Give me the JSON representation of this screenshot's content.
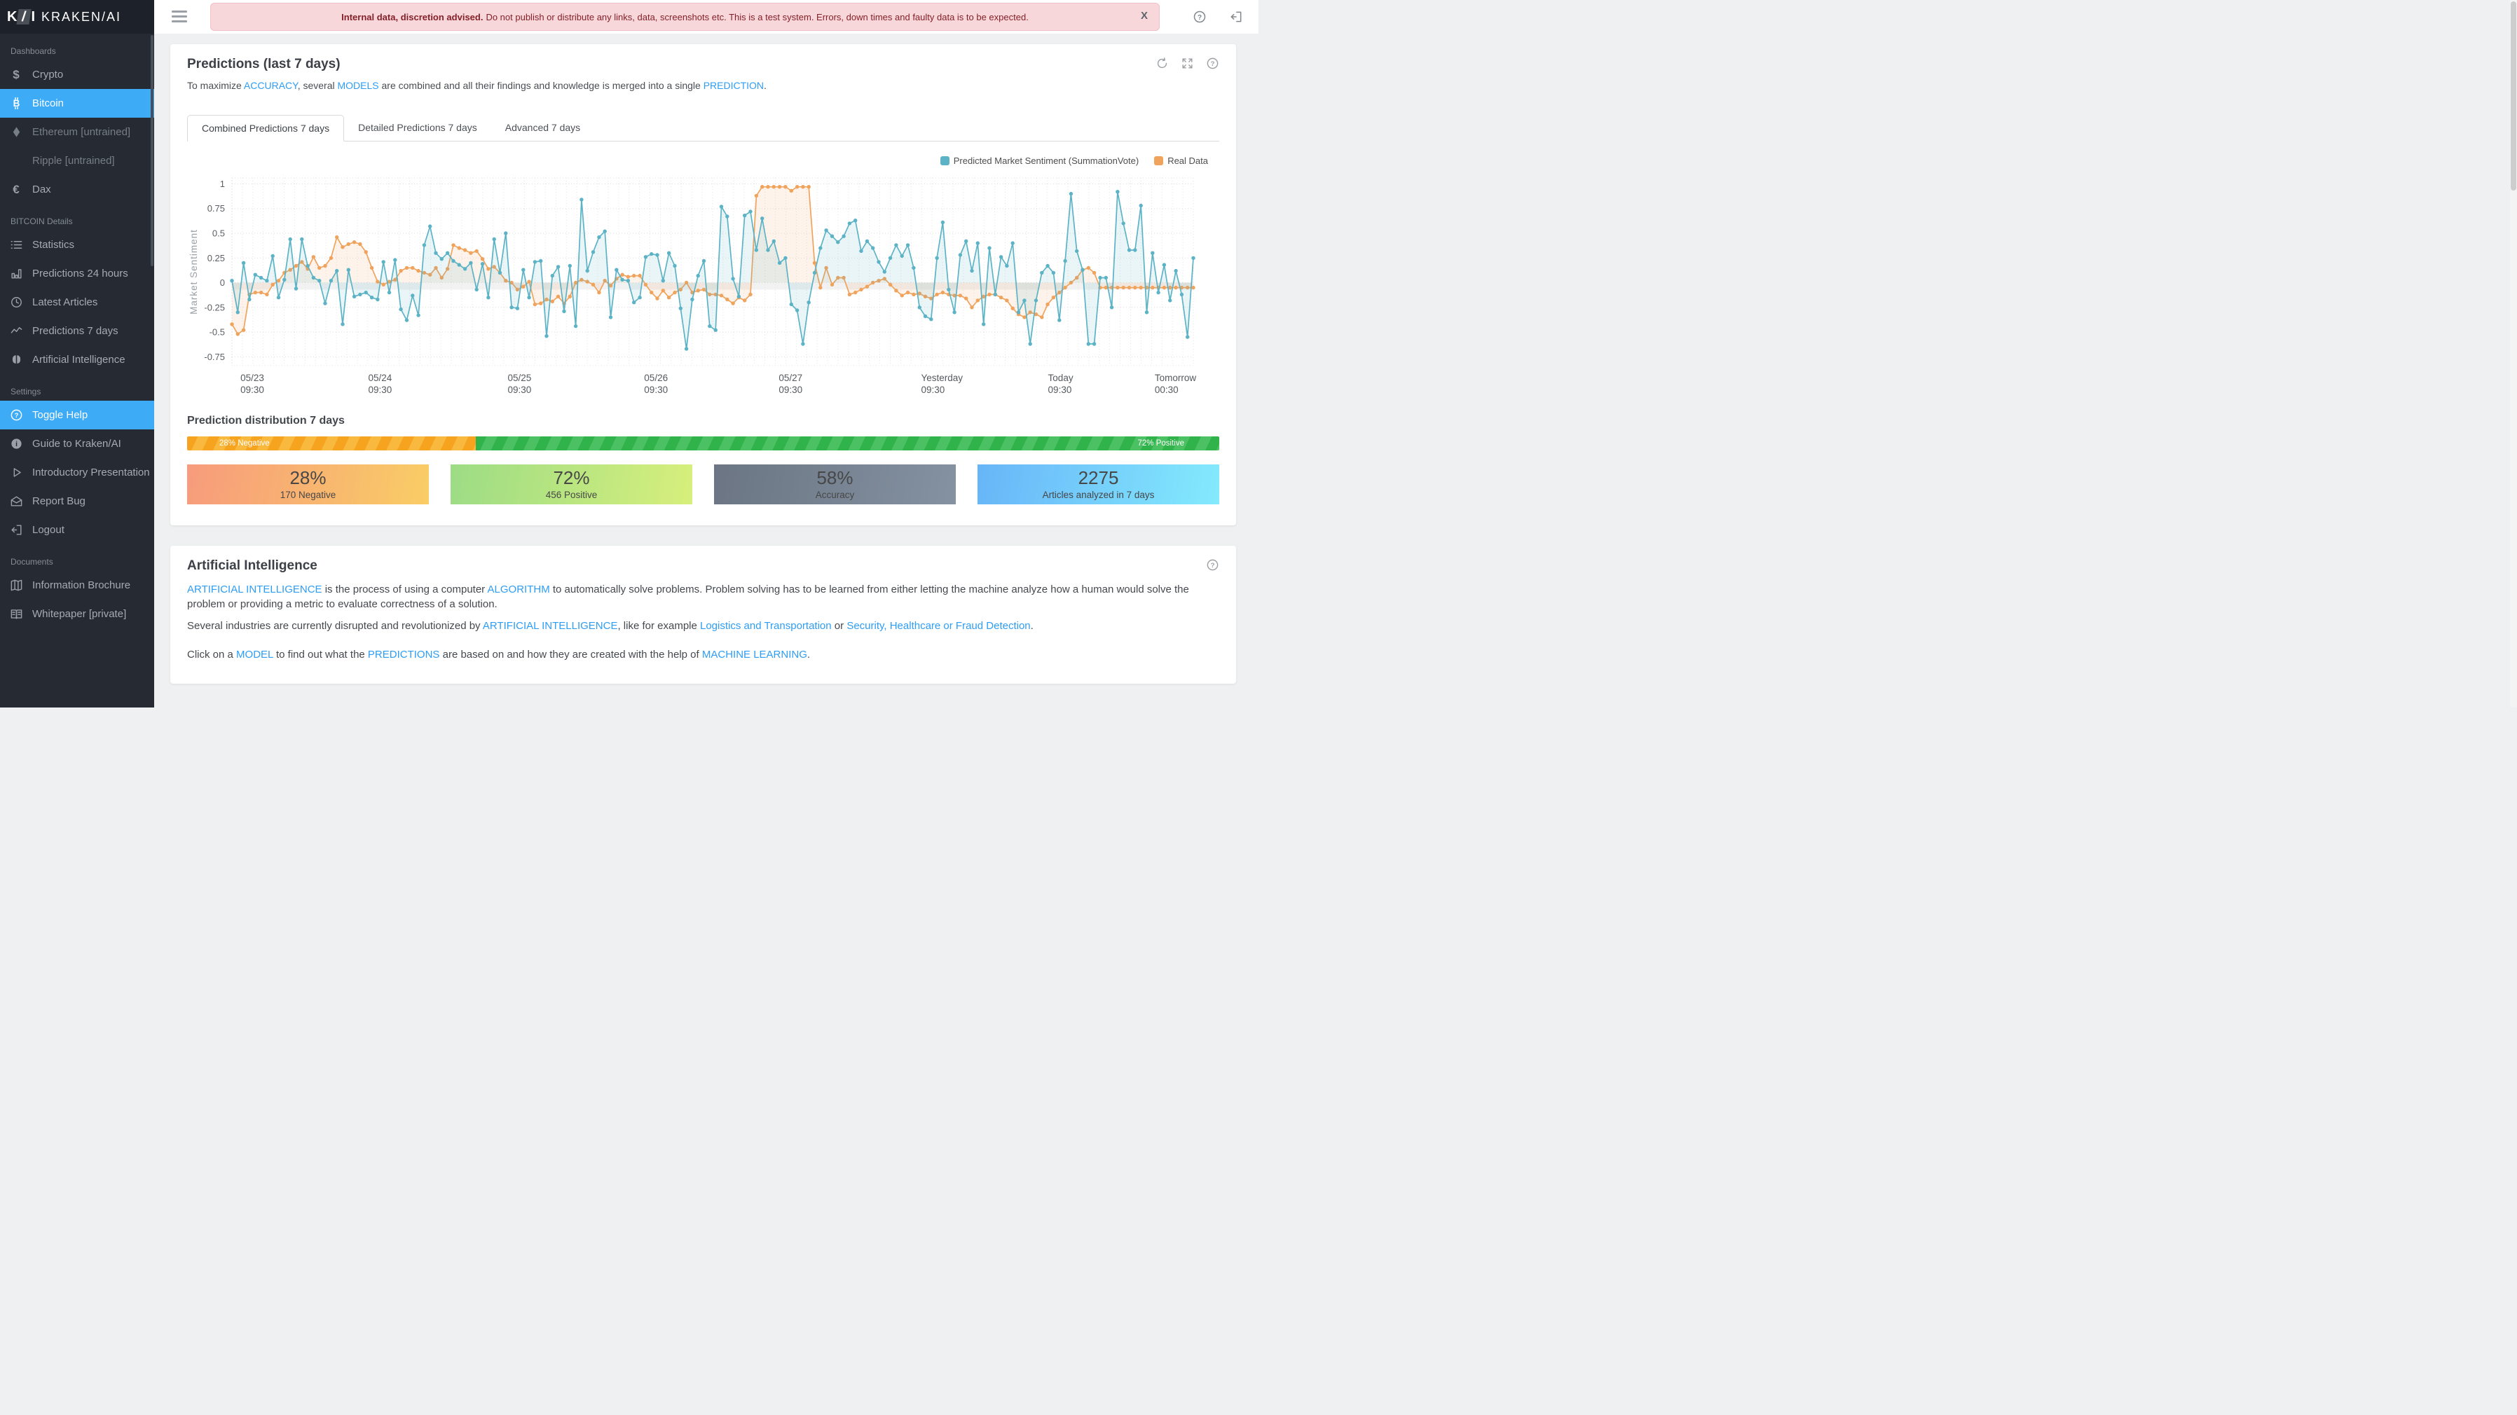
{
  "logo": {
    "mark_parts": [
      "K",
      "/",
      "I"
    ],
    "brand": "KRAKEN/AI"
  },
  "sidebar": {
    "sections": [
      {
        "header": "Dashboards",
        "items": [
          {
            "label": "Crypto",
            "icon": "dollar-icon"
          },
          {
            "label": "Bitcoin",
            "icon": "bitcoin-icon",
            "state": "active"
          },
          {
            "label": "Ethereum [untrained]",
            "icon": "ethereum-icon",
            "state": "muted"
          },
          {
            "label": "Ripple [untrained]",
            "icon": "none",
            "state": "muted"
          },
          {
            "label": "Dax",
            "icon": "euro-icon"
          }
        ]
      },
      {
        "header": "BITCOIN Details",
        "items": [
          {
            "label": "Statistics",
            "icon": "list-icon"
          },
          {
            "label": "Predictions 24 hours",
            "icon": "bar-chart-icon"
          },
          {
            "label": "Latest Articles",
            "icon": "clock-icon"
          },
          {
            "label": "Predictions 7 days",
            "icon": "trend-icon"
          },
          {
            "label": "Artificial Intelligence",
            "icon": "brain-icon"
          }
        ]
      },
      {
        "header": "Settings",
        "items": [
          {
            "label": "Toggle Help",
            "icon": "help-circle-icon",
            "state": "active"
          },
          {
            "label": "Guide to Kraken/AI",
            "icon": "info-icon"
          },
          {
            "label": "Introductory Presentation",
            "icon": "play-icon"
          },
          {
            "label": "Report Bug",
            "icon": "envelope-icon"
          },
          {
            "label": "Logout",
            "icon": "logout-icon"
          }
        ]
      },
      {
        "header": "Documents",
        "items": [
          {
            "label": "Information Brochure",
            "icon": "brochure-icon"
          },
          {
            "label": "Whitepaper [private]",
            "icon": "book-icon"
          }
        ]
      }
    ]
  },
  "topbar": {
    "banner_bold": "Internal data, discretion advised.",
    "banner_text": "Do not publish or distribute any links, data, screenshots etc. This is a test system. Errors, down times and faulty data is to be expected.",
    "close_label": "X"
  },
  "predictions_card": {
    "title": "Predictions (last 7 days)",
    "subtitle_runs": [
      {
        "t": "To maximize "
      },
      {
        "t": "ACCURACY",
        "link": true
      },
      {
        "t": ", several "
      },
      {
        "t": "MODELS",
        "link": true
      },
      {
        "t": " are combined and all their findings and knowledge is merged into a single "
      },
      {
        "t": "PREDICTION",
        "link": true
      },
      {
        "t": "."
      }
    ],
    "tabs": [
      {
        "label": "Combined Predictions 7 days",
        "active": true
      },
      {
        "label": "Detailed Predictions 7 days",
        "active": false
      },
      {
        "label": "Advanced 7 days",
        "active": false
      }
    ],
    "distribution": {
      "title": "Prediction distribution 7 days",
      "segments": [
        {
          "label": "28% Negative",
          "pct": 28,
          "color": "#f6a41f",
          "stripe": "#f9b93e",
          "align": "left"
        },
        {
          "label": "72% Positive",
          "pct": 72,
          "color": "#2fb34a",
          "stripe": "#4cc163",
          "align": "right"
        }
      ]
    },
    "stats": [
      {
        "value": "28%",
        "label": "170 Negative",
        "gradient": [
          "#f79b7c",
          "#f9cd65"
        ]
      },
      {
        "value": "72%",
        "label": "456 Positive",
        "gradient": [
          "#9cdc85",
          "#d7ef7c"
        ]
      },
      {
        "value": "58%",
        "label": "Accuracy",
        "gradient": [
          "#6b7583",
          "#8492a1"
        ]
      },
      {
        "value": "2275",
        "label": "Articles analyzed in 7 days",
        "gradient": [
          "#67b5f8",
          "#84eafd"
        ]
      }
    ]
  },
  "ai_card": {
    "title": "Artificial Intelligence",
    "paragraphs": [
      {
        "runs": [
          {
            "t": "ARTIFICIAL INTELLIGENCE",
            "link": true
          },
          {
            "t": " is the process of using a computer "
          },
          {
            "t": "ALGORITHM",
            "link": true
          },
          {
            "t": " to automatically solve problems. Problem solving has to be learned from either letting the machine analyze how a human would solve the problem or providing a metric to evaluate correctness of a solution."
          }
        ]
      },
      {
        "runs": [
          {
            "t": "Several industries are currently disrupted and revolutionized by "
          },
          {
            "t": "ARTIFICIAL INTELLIGENCE",
            "link": true
          },
          {
            "t": ", like for example "
          },
          {
            "t": "Logistics and Transportation",
            "link": true
          },
          {
            "t": " or "
          },
          {
            "t": "Security, Healthcare or Fraud Detection",
            "link": true
          },
          {
            "t": "."
          }
        ]
      },
      {
        "gap": true,
        "runs": [
          {
            "t": "Click on a "
          },
          {
            "t": "MODEL",
            "link": true
          },
          {
            "t": " to find out what the "
          },
          {
            "t": "PREDICTIONS",
            "link": true
          },
          {
            "t": " are based on and how they are created with the help of "
          },
          {
            "t": "MACHINE LEARNING",
            "link": true
          },
          {
            "t": "."
          }
        ]
      }
    ]
  },
  "chart_data": {
    "type": "line",
    "title": "Combined Predictions 7 days",
    "ylabel": "Market Sentiment",
    "ylim": [
      -0.84,
      1.06
    ],
    "yticks": [
      1,
      0.75,
      0.5,
      0.25,
      0,
      -0.25,
      -0.5,
      -0.75
    ],
    "grid": true,
    "legend_position": "top-right",
    "zero_band": [
      0,
      -0.07
    ],
    "xticks": [
      {
        "pos": 0.019,
        "line1": "05/23",
        "line2": "09:30"
      },
      {
        "pos": 0.152,
        "line1": "05/24",
        "line2": "09:30"
      },
      {
        "pos": 0.297,
        "line1": "05/25",
        "line2": "09:30"
      },
      {
        "pos": 0.439,
        "line1": "05/26",
        "line2": "09:30"
      },
      {
        "pos": 0.579,
        "line1": "05/27",
        "line2": "09:30"
      },
      {
        "pos": 0.727,
        "line1": "Yesterday",
        "line2": "09:30"
      },
      {
        "pos": 0.859,
        "line1": "Today",
        "line2": "09:30"
      },
      {
        "pos": 0.97,
        "line1": "Tomorrow",
        "line2": "00:30"
      }
    ],
    "series": [
      {
        "name": "Real Data",
        "color": "#f0a35c",
        "fill": "rgba(240,163,92,0.13)",
        "values": [
          -0.42,
          -0.52,
          -0.48,
          -0.12,
          -0.1,
          -0.1,
          -0.12,
          -0.02,
          0.02,
          0.1,
          0.13,
          0.17,
          0.21,
          0.14,
          0.26,
          0.15,
          0.17,
          0.25,
          0.46,
          0.36,
          0.39,
          0.41,
          0.39,
          0.31,
          0.15,
          0.01,
          -0.02,
          0.01,
          0.03,
          0.12,
          0.15,
          0.15,
          0.12,
          0.1,
          0.08,
          0.15,
          0.05,
          0.14,
          0.38,
          0.35,
          0.33,
          0.3,
          0.32,
          0.24,
          0.14,
          0.16,
          0.1,
          0.02,
          0.0,
          -0.07,
          -0.04,
          0.01,
          -0.22,
          -0.21,
          -0.17,
          -0.19,
          -0.14,
          -0.21,
          -0.14,
          0.0,
          0.03,
          0.01,
          -0.02,
          -0.1,
          0.02,
          -0.03,
          0.04,
          0.08,
          0.06,
          0.07,
          0.07,
          -0.02,
          -0.1,
          -0.16,
          -0.08,
          -0.15,
          -0.1,
          -0.07,
          0.0,
          -0.1,
          -0.08,
          -0.07,
          -0.12,
          -0.12,
          -0.13,
          -0.17,
          -0.21,
          -0.15,
          -0.18,
          -0.12,
          0.88,
          0.97,
          0.97,
          0.97,
          0.97,
          0.97,
          0.93,
          0.97,
          0.97,
          0.97,
          0.2,
          -0.05,
          0.15,
          -0.02,
          0.05,
          0.05,
          -0.12,
          -0.1,
          -0.07,
          -0.04,
          0.0,
          0.02,
          0.04,
          -0.02,
          -0.08,
          -0.13,
          -0.1,
          -0.12,
          -0.11,
          -0.14,
          -0.16,
          -0.12,
          -0.1,
          -0.12,
          -0.13,
          -0.13,
          -0.16,
          -0.25,
          -0.18,
          -0.14,
          -0.12,
          -0.12,
          -0.15,
          -0.18,
          -0.26,
          -0.32,
          -0.35,
          -0.3,
          -0.32,
          -0.35,
          -0.22,
          -0.15,
          -0.1,
          -0.05,
          0.0,
          0.05,
          0.13,
          0.15,
          0.1,
          -0.05,
          -0.05,
          -0.05,
          -0.05,
          -0.05,
          -0.05,
          -0.05,
          -0.05,
          -0.05,
          -0.05,
          -0.05,
          -0.05,
          -0.05,
          -0.05,
          -0.05,
          -0.05,
          -0.05
        ]
      },
      {
        "name": "Predicted Market Sentiment (SummationVote)",
        "color": "#5cb3c6",
        "fill": "rgba(92,179,198,0.13)",
        "values": [
          0.02,
          -0.3,
          0.2,
          -0.17,
          0.08,
          0.05,
          0.02,
          0.27,
          -0.15,
          0.03,
          0.44,
          -0.06,
          0.44,
          0.17,
          0.05,
          0.02,
          -0.21,
          0.02,
          0.12,
          -0.42,
          0.13,
          -0.14,
          -0.12,
          -0.1,
          -0.15,
          -0.17,
          0.21,
          -0.1,
          0.23,
          -0.27,
          -0.38,
          -0.13,
          -0.33,
          0.38,
          0.57,
          0.3,
          0.24,
          0.3,
          0.22,
          0.18,
          0.14,
          0.2,
          -0.07,
          0.19,
          -0.15,
          0.44,
          0.1,
          0.5,
          -0.25,
          -0.26,
          0.13,
          -0.15,
          0.21,
          0.22,
          -0.54,
          0.07,
          0.16,
          -0.29,
          0.17,
          -0.44,
          0.84,
          0.12,
          0.31,
          0.46,
          0.52,
          -0.35,
          0.13,
          0.03,
          0.02,
          -0.2,
          -0.15,
          0.26,
          0.29,
          0.28,
          0.02,
          0.3,
          0.17,
          -0.26,
          -0.67,
          -0.17,
          0.07,
          0.22,
          -0.44,
          -0.48,
          0.77,
          0.67,
          0.04,
          -0.14,
          0.68,
          0.72,
          0.33,
          0.65,
          0.33,
          0.42,
          0.2,
          0.25,
          -0.22,
          -0.28,
          -0.62,
          -0.2,
          0.1,
          0.35,
          0.53,
          0.47,
          0.41,
          0.47,
          0.6,
          0.63,
          0.32,
          0.42,
          0.35,
          0.21,
          0.11,
          0.25,
          0.38,
          0.27,
          0.38,
          0.15,
          -0.25,
          -0.34,
          -0.37,
          0.25,
          0.61,
          -0.07,
          -0.3,
          0.28,
          0.42,
          0.12,
          0.4,
          -0.42,
          0.35,
          -0.12,
          0.26,
          0.17,
          0.4,
          -0.3,
          -0.18,
          -0.62,
          -0.18,
          0.1,
          0.17,
          0.1,
          -0.38,
          0.22,
          0.9,
          0.32,
          0.13,
          -0.62,
          -0.62,
          0.05,
          0.05,
          -0.25,
          0.92,
          0.6,
          0.33,
          0.33,
          0.78,
          -0.3,
          0.3,
          -0.1,
          0.18,
          -0.18,
          0.12,
          -0.12,
          -0.55,
          0.25
        ]
      }
    ]
  }
}
